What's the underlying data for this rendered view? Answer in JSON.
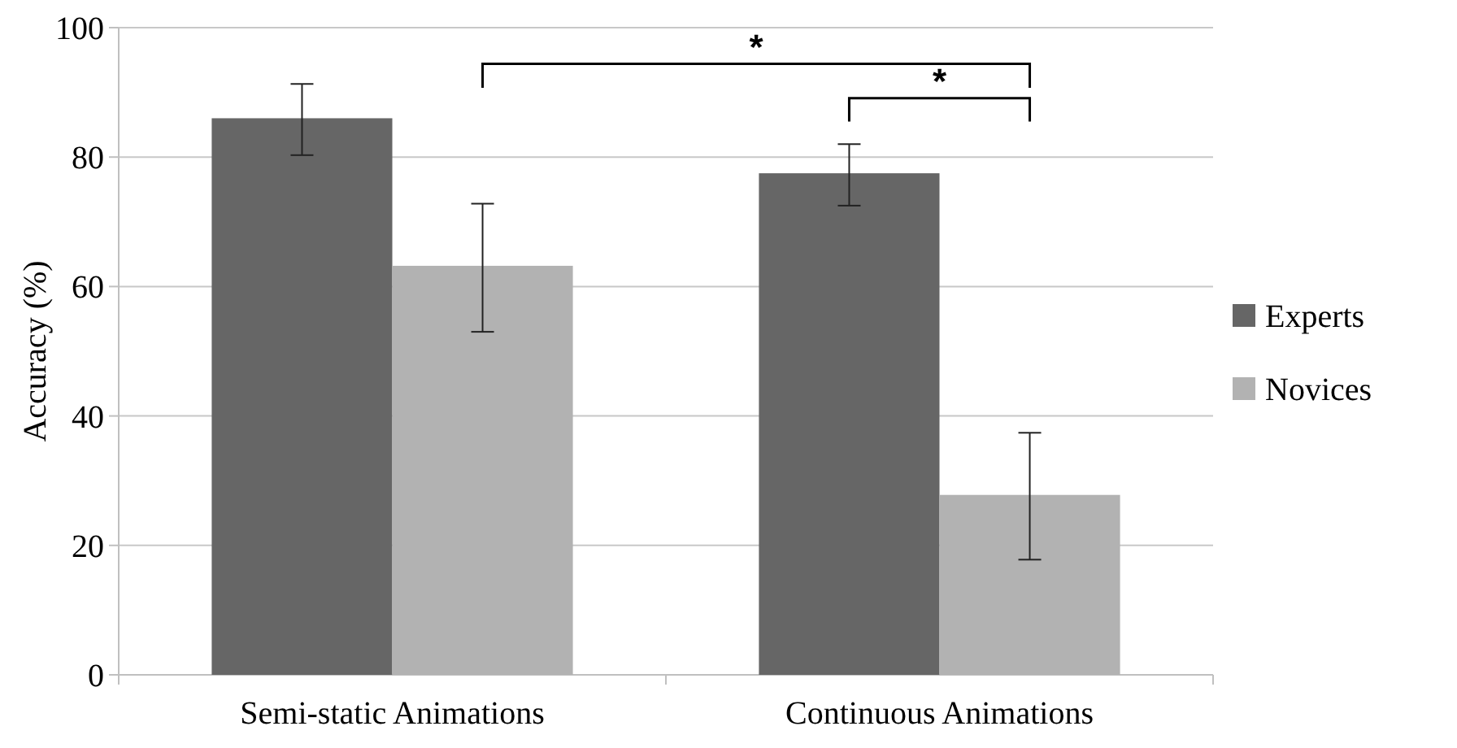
{
  "chart_data": {
    "type": "bar",
    "ylabel": "Accuracy (%)",
    "categories": [
      "Semi-static Animations",
      "Continuous Animations"
    ],
    "series": [
      {
        "name": "Experts",
        "color": "#666666",
        "values": [
          86,
          77.5
        ],
        "errors": [
          [
            80.3,
            91.3
          ],
          [
            72.5,
            82
          ]
        ]
      },
      {
        "name": "Novices",
        "color": "#b2b2b2",
        "values": [
          63.2,
          27.8
        ],
        "errors": [
          [
            53,
            72.8
          ],
          [
            17.8,
            37.4
          ]
        ]
      }
    ],
    "ylim": [
      0,
      100
    ],
    "yticks": [
      0,
      20,
      40,
      60,
      80,
      100
    ],
    "grid": "y",
    "legend": "right",
    "annotations": [
      "*",
      "*"
    ]
  }
}
